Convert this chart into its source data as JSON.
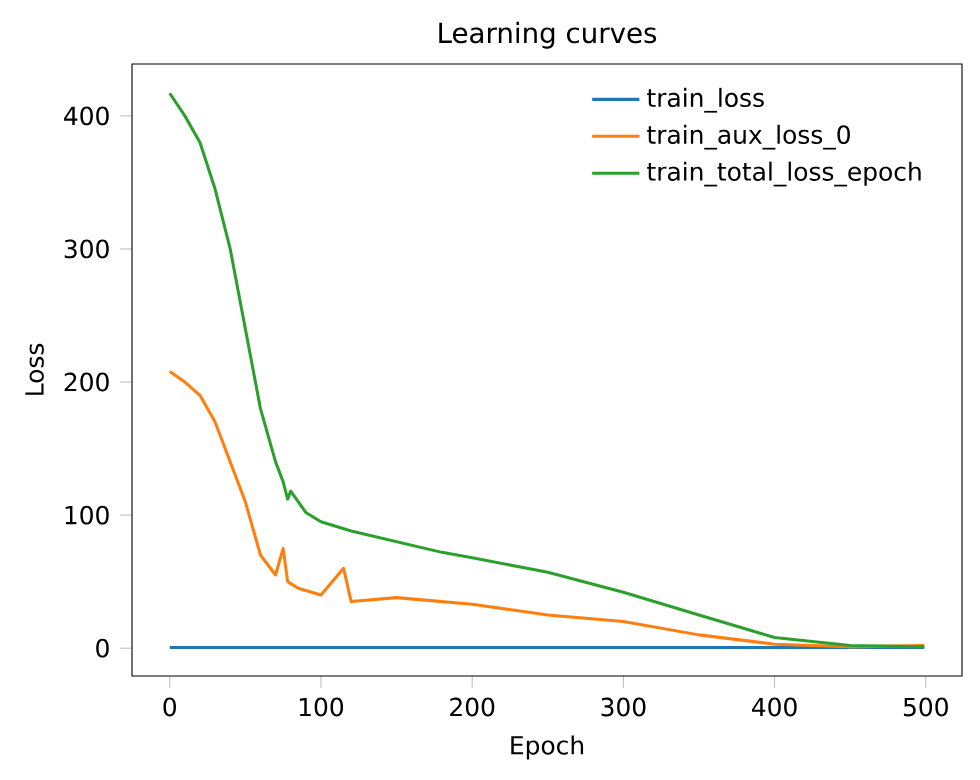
{
  "chart_data": {
    "type": "line",
    "title": "Learning curves",
    "xlabel": "Epoch",
    "ylabel": "Loss",
    "xlim": [
      -24.95,
      523.95
    ],
    "ylim": [
      -20.9,
      439
    ],
    "xticks": [
      0,
      100,
      200,
      300,
      400,
      500
    ],
    "yticks": [
      0,
      100,
      200,
      300,
      400
    ],
    "legend": "top right",
    "grid": false,
    "series": [
      {
        "name": "train_loss",
        "color": "#1f77b4",
        "x": [
          0,
          100,
          200,
          300,
          400,
          499
        ],
        "values": [
          0.5,
          0.5,
          0.5,
          0.5,
          0.5,
          0.5
        ]
      },
      {
        "name": "train_aux_loss_0",
        "color": "#ff7f0e",
        "x": [
          0,
          10,
          20,
          30,
          40,
          50,
          60,
          70,
          75,
          78,
          85,
          100,
          115,
          120,
          150,
          200,
          250,
          300,
          350,
          400,
          450,
          499
        ],
        "values": [
          208,
          200,
          190,
          170,
          140,
          110,
          70,
          55,
          75,
          50,
          45,
          40,
          60,
          35,
          38,
          33,
          25,
          20,
          10,
          3,
          1,
          2
        ]
      },
      {
        "name": "train_total_loss_epoch",
        "color": "#2ca02c",
        "x": [
          0,
          10,
          20,
          30,
          40,
          50,
          60,
          70,
          75,
          78,
          80,
          90,
          100,
          120,
          150,
          180,
          200,
          250,
          300,
          350,
          400,
          450,
          499
        ],
        "values": [
          417,
          400,
          380,
          345,
          300,
          240,
          180,
          140,
          125,
          112,
          118,
          102,
          95,
          88,
          80,
          72,
          68,
          57,
          42,
          25,
          8,
          2,
          1
        ]
      }
    ]
  }
}
